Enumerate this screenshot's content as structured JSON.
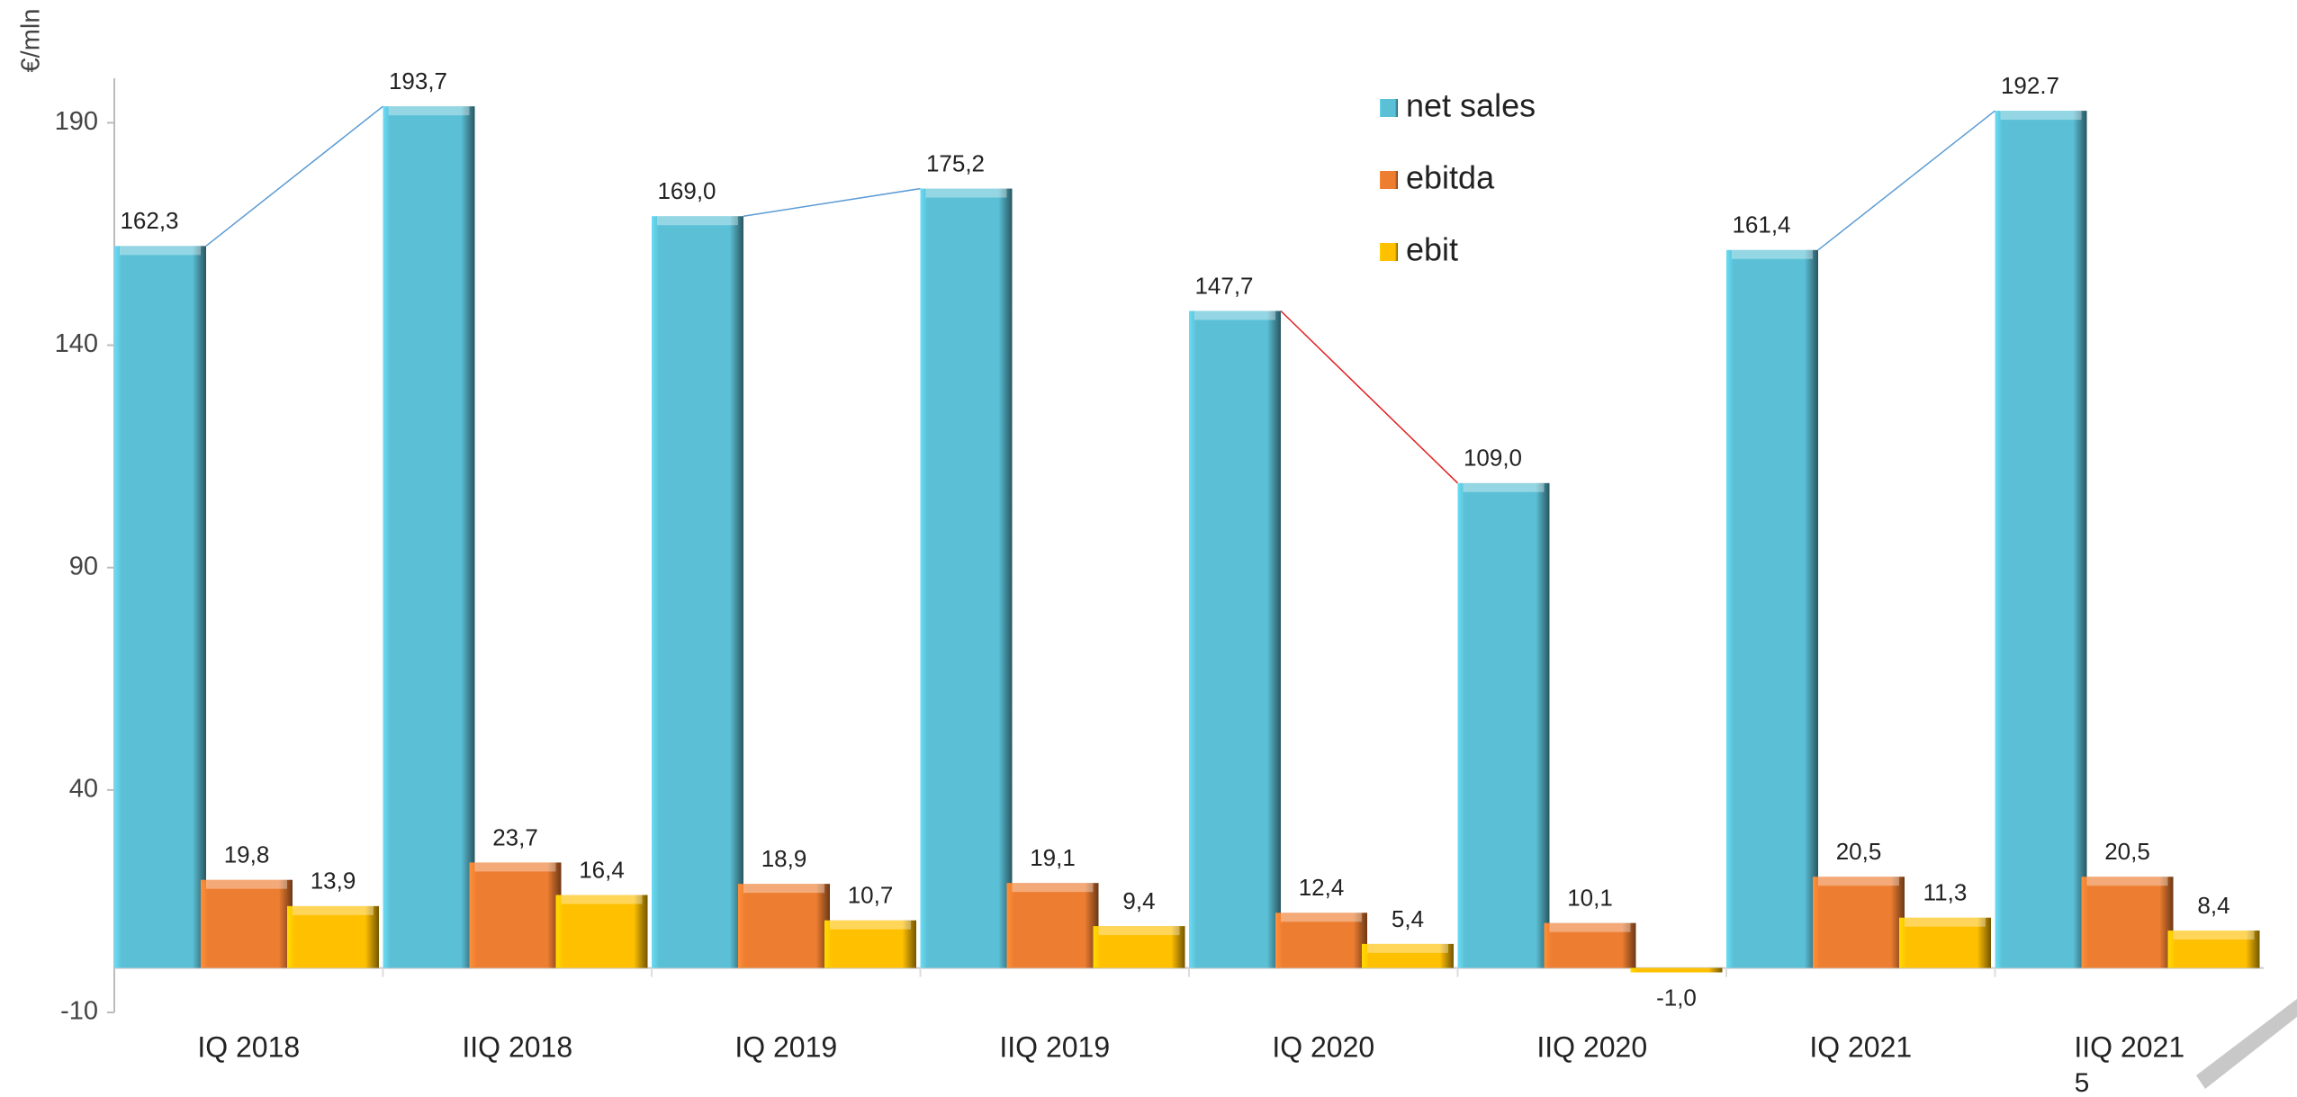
{
  "chart_data": {
    "type": "bar",
    "y_axis_label": "€/mln",
    "categories": [
      "IQ 2018",
      "IIQ 2018",
      "IQ 2019",
      "IIQ 2019",
      "IQ 2020",
      "IIQ 2020",
      "IQ 2021",
      "IIQ 2021"
    ],
    "series": [
      {
        "name": "net sales",
        "color": "#5bc0d6",
        "values": [
          162.3,
          193.7,
          169.0,
          175.2,
          147.7,
          109.0,
          161.4,
          192.7
        ],
        "value_labels": [
          "162,3",
          "193,7",
          "169,0",
          "175,2",
          "147,7",
          "109,0",
          "161,4",
          "192.7"
        ]
      },
      {
        "name": "ebitda",
        "color": "#ed7d31",
        "values": [
          19.8,
          23.7,
          18.9,
          19.1,
          12.4,
          10.1,
          20.5,
          20.5
        ],
        "value_labels": [
          "19,8",
          "23,7",
          "18,9",
          "19,1",
          "12,4",
          "10,1",
          "20,5",
          "20,5"
        ]
      },
      {
        "name": "ebit",
        "color": "#ffc000",
        "values": [
          13.9,
          16.4,
          10.7,
          9.4,
          5.4,
          -1.0,
          11.3,
          8.4
        ],
        "value_labels": [
          "13,9",
          "16,4",
          "10,7",
          "9,4",
          "5,4",
          "-1,0",
          "11,3",
          "8,4"
        ]
      }
    ],
    "connector_colors": [
      "#5b9bd5",
      "#5b9bd5",
      "#e02020",
      "#5b9bd5"
    ],
    "ylim": [
      -10,
      200
    ],
    "yticks": [
      -10,
      40,
      90,
      140,
      190
    ],
    "legend": "top-right"
  },
  "page_number": "5"
}
